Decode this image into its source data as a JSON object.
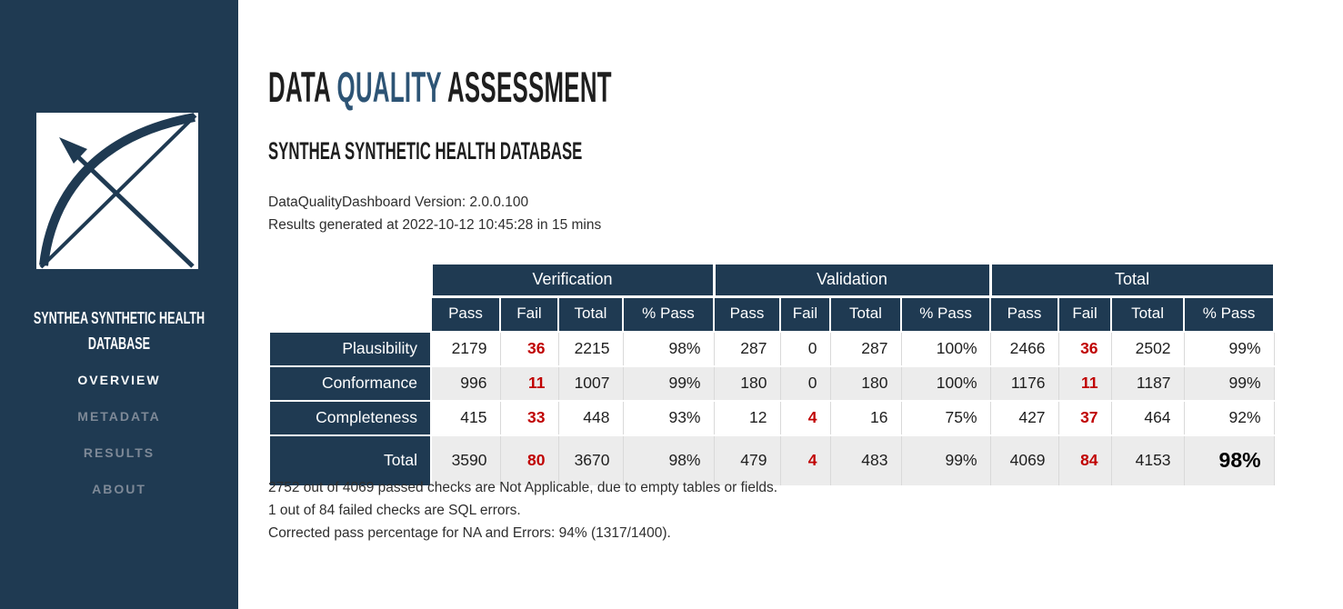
{
  "colors": {
    "navy": "#1f3a52",
    "title_accent_blue": "#2d5475",
    "fail_red": "#c00000",
    "stripe_gray": "#ececec"
  },
  "sidebar": {
    "logo_icon": "bow-and-arrows-logo",
    "title": "SYNTHEA SYNTHETIC HEALTH DATABASE",
    "nav": [
      {
        "label": "OVERVIEW",
        "active": true
      },
      {
        "label": "METADATA",
        "active": false
      },
      {
        "label": "RESULTS",
        "active": false
      },
      {
        "label": "ABOUT",
        "active": false
      }
    ]
  },
  "main": {
    "title": {
      "part1": "DATA ",
      "part2": "QUALITY",
      "part3": " ASSESSMENT"
    },
    "subtitle": "SYNTHEA SYNTHETIC HEALTH DATABASE",
    "version_line": "DataQualityDashboard Version: 2.0.0.100",
    "generated_line": "Results generated at 2022-10-12 10:45:28 in 15 mins",
    "notes": [
      "2752 out of 4069 passed checks are Not Applicable, due to empty tables or fields.",
      "1 out of 84 failed checks are SQL errors.",
      "Corrected pass percentage for NA and Errors: 94% (1317/1400)."
    ]
  },
  "table": {
    "group_headers": [
      "Verification",
      "Validation",
      "Total"
    ],
    "sub_headers": [
      "Pass",
      "Fail",
      "Total",
      "% Pass"
    ],
    "fail_column_indexes": [
      1,
      5,
      9
    ],
    "rows": [
      {
        "label": "Plausibility",
        "cells": [
          "2179",
          "36",
          "2215",
          "98%",
          "287",
          "0",
          "287",
          "100%",
          "2466",
          "36",
          "2502",
          "99%"
        ]
      },
      {
        "label": "Conformance",
        "cells": [
          "996",
          "11",
          "1007",
          "99%",
          "180",
          "0",
          "180",
          "100%",
          "1176",
          "11",
          "1187",
          "99%"
        ]
      },
      {
        "label": "Completeness",
        "cells": [
          "415",
          "33",
          "448",
          "93%",
          "12",
          "4",
          "16",
          "75%",
          "427",
          "37",
          "464",
          "92%"
        ]
      },
      {
        "label": "Total",
        "grand_total_row": true,
        "cells": [
          "3590",
          "80",
          "3670",
          "98%",
          "479",
          "4",
          "483",
          "99%",
          "4069",
          "84",
          "4153",
          "98%"
        ]
      }
    ]
  }
}
